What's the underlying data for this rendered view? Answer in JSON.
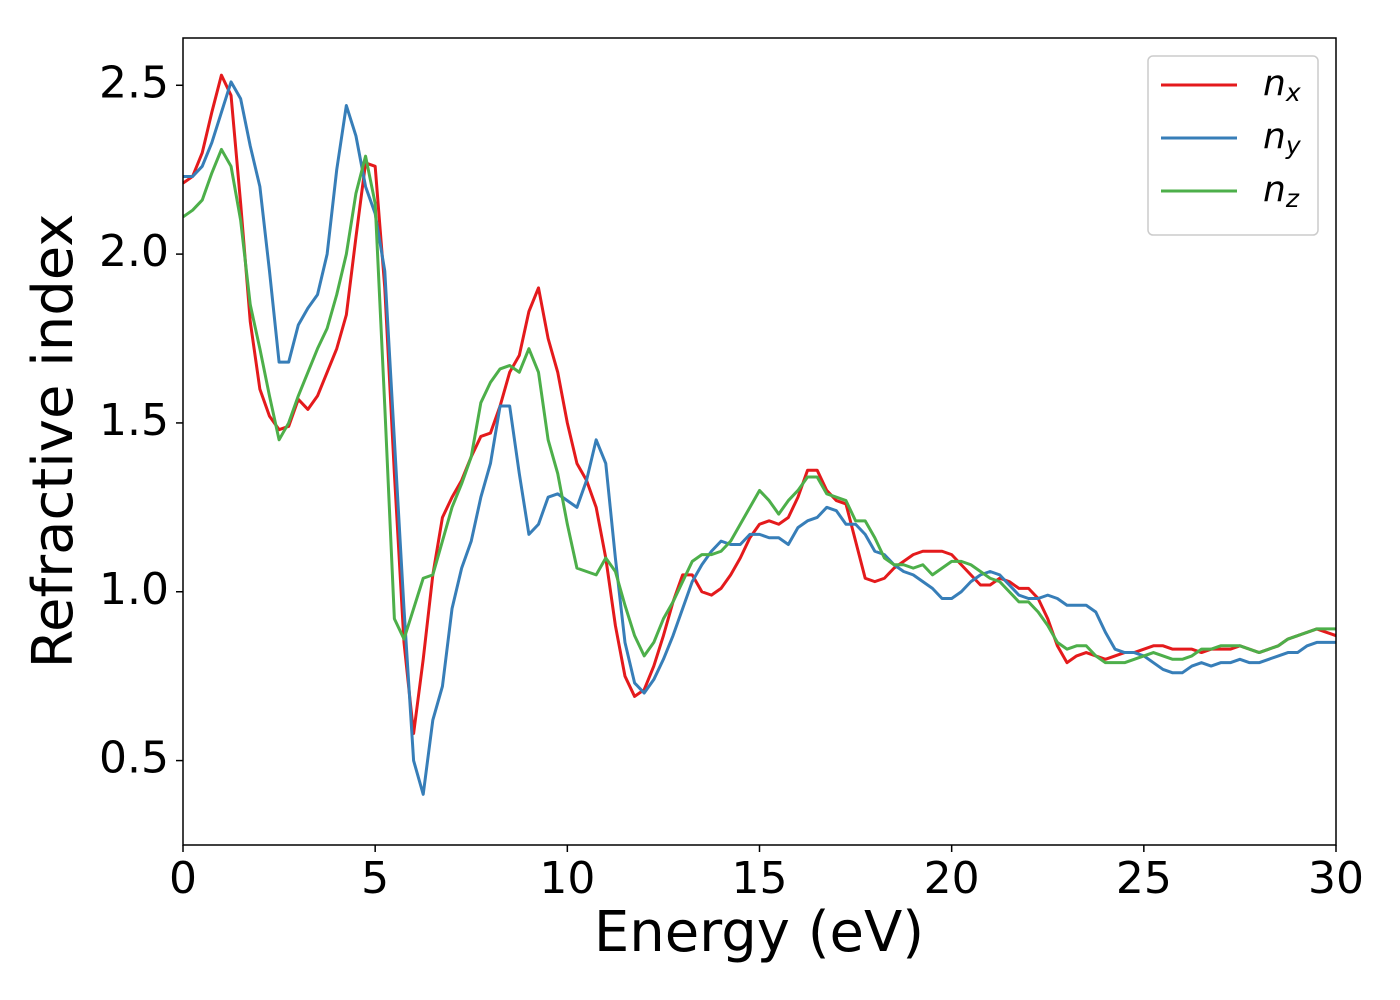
{
  "chart_data": {
    "type": "line",
    "xlabel": "Energy (eV)",
    "ylabel": "Refractive index",
    "xlim": [
      0,
      30
    ],
    "ylim": [
      0.25,
      2.64
    ],
    "xticks": [
      0,
      5,
      10,
      15,
      20,
      25,
      30
    ],
    "yticks": [
      0.5,
      {
        "value": 1,
        "label": "1.0"
      },
      1.5,
      {
        "value": 2,
        "label": "2.0"
      },
      2.5
    ],
    "grid": false,
    "legend": "upper right",
    "x": [
      0,
      0.25,
      0.5,
      0.75,
      1,
      1.25,
      1.5,
      1.75,
      2,
      2.25,
      2.5,
      2.75,
      3,
      3.25,
      3.5,
      3.75,
      4,
      4.25,
      4.5,
      4.75,
      5,
      5.25,
      5.5,
      5.75,
      6,
      6.25,
      6.5,
      6.75,
      7,
      7.25,
      7.5,
      7.75,
      8,
      8.25,
      8.5,
      8.75,
      9,
      9.25,
      9.5,
      9.75,
      10,
      10.25,
      10.5,
      10.75,
      11,
      11.25,
      11.5,
      11.75,
      12,
      12.25,
      12.5,
      12.75,
      13,
      13.25,
      13.5,
      13.75,
      14,
      14.25,
      14.5,
      14.75,
      15,
      15.25,
      15.5,
      15.75,
      16,
      16.25,
      16.5,
      16.75,
      17,
      17.25,
      17.5,
      17.75,
      18,
      18.25,
      18.5,
      18.75,
      19,
      19.25,
      19.5,
      19.75,
      20,
      20.25,
      20.5,
      20.75,
      21,
      21.25,
      21.5,
      21.75,
      22,
      22.25,
      22.5,
      22.75,
      23,
      23.25,
      23.5,
      23.75,
      24,
      24.25,
      24.5,
      24.75,
      25,
      25.25,
      25.5,
      25.75,
      26,
      26.25,
      26.5,
      26.75,
      27,
      27.25,
      27.5,
      27.75,
      28,
      28.25,
      28.5,
      28.75,
      29,
      29.25,
      29.5,
      29.75,
      30
    ],
    "series": [
      {
        "name": "nx",
        "color": "#e41a1c",
        "values": [
          2.21,
          2.23,
          2.3,
          2.42,
          2.53,
          2.47,
          2.15,
          1.8,
          1.6,
          1.52,
          1.48,
          1.49,
          1.57,
          1.54,
          1.58,
          1.65,
          1.72,
          1.82,
          2.05,
          2.27,
          2.26,
          1.9,
          1.35,
          0.85,
          0.58,
          0.8,
          1.05,
          1.22,
          1.28,
          1.33,
          1.4,
          1.46,
          1.47,
          1.55,
          1.65,
          1.7,
          1.83,
          1.9,
          1.75,
          1.65,
          1.5,
          1.38,
          1.33,
          1.25,
          1.1,
          0.9,
          0.75,
          0.69,
          0.71,
          0.78,
          0.87,
          0.97,
          1.05,
          1.05,
          1.0,
          0.99,
          1.01,
          1.05,
          1.1,
          1.16,
          1.2,
          1.21,
          1.2,
          1.22,
          1.28,
          1.36,
          1.36,
          1.3,
          1.27,
          1.26,
          1.15,
          1.04,
          1.03,
          1.04,
          1.07,
          1.09,
          1.11,
          1.12,
          1.12,
          1.12,
          1.11,
          1.08,
          1.05,
          1.02,
          1.02,
          1.04,
          1.03,
          1.01,
          1.01,
          0.98,
          0.92,
          0.84,
          0.79,
          0.81,
          0.82,
          0.81,
          0.8,
          0.81,
          0.82,
          0.82,
          0.83,
          0.84,
          0.84,
          0.83,
          0.83,
          0.83,
          0.82,
          0.83,
          0.83,
          0.83,
          0.84,
          0.83,
          0.82,
          0.83,
          0.84,
          0.86,
          0.87,
          0.88,
          0.89,
          0.88,
          0.87
        ]
      },
      {
        "name": "ny",
        "color": "#377eb8",
        "values": [
          2.23,
          2.23,
          2.26,
          2.33,
          2.42,
          2.51,
          2.46,
          2.32,
          2.2,
          1.95,
          1.68,
          1.68,
          1.79,
          1.84,
          1.88,
          2.0,
          2.25,
          2.44,
          2.35,
          2.2,
          2.12,
          1.95,
          1.45,
          0.95,
          0.5,
          0.4,
          0.62,
          0.72,
          0.95,
          1.07,
          1.15,
          1.28,
          1.38,
          1.55,
          1.55,
          1.35,
          1.17,
          1.2,
          1.28,
          1.29,
          1.27,
          1.25,
          1.33,
          1.45,
          1.38,
          1.1,
          0.85,
          0.73,
          0.7,
          0.74,
          0.8,
          0.87,
          0.95,
          1.03,
          1.08,
          1.12,
          1.15,
          1.14,
          1.14,
          1.17,
          1.17,
          1.16,
          1.16,
          1.14,
          1.19,
          1.21,
          1.22,
          1.25,
          1.24,
          1.2,
          1.2,
          1.17,
          1.12,
          1.11,
          1.08,
          1.06,
          1.05,
          1.03,
          1.01,
          0.98,
          0.98,
          1.0,
          1.03,
          1.05,
          1.06,
          1.05,
          1.02,
          0.99,
          0.98,
          0.98,
          0.99,
          0.98,
          0.96,
          0.96,
          0.96,
          0.94,
          0.88,
          0.83,
          0.82,
          0.82,
          0.81,
          0.79,
          0.77,
          0.76,
          0.76,
          0.78,
          0.79,
          0.78,
          0.79,
          0.79,
          0.8,
          0.79,
          0.79,
          0.8,
          0.81,
          0.82,
          0.82,
          0.84,
          0.85,
          0.85,
          0.85
        ]
      },
      {
        "name": "nz",
        "color": "#4daf4a",
        "values": [
          2.11,
          2.13,
          2.16,
          2.24,
          2.31,
          2.26,
          2.1,
          1.85,
          1.72,
          1.58,
          1.45,
          1.5,
          1.58,
          1.65,
          1.72,
          1.78,
          1.88,
          2.0,
          2.18,
          2.29,
          2.15,
          1.55,
          0.92,
          0.86,
          0.95,
          1.04,
          1.05,
          1.15,
          1.25,
          1.32,
          1.4,
          1.56,
          1.62,
          1.66,
          1.67,
          1.65,
          1.72,
          1.65,
          1.45,
          1.35,
          1.2,
          1.07,
          1.06,
          1.05,
          1.1,
          1.06,
          0.96,
          0.87,
          0.81,
          0.85,
          0.92,
          0.97,
          1.03,
          1.09,
          1.11,
          1.11,
          1.12,
          1.15,
          1.2,
          1.25,
          1.3,
          1.27,
          1.23,
          1.27,
          1.3,
          1.34,
          1.34,
          1.29,
          1.28,
          1.27,
          1.21,
          1.21,
          1.16,
          1.1,
          1.08,
          1.08,
          1.07,
          1.08,
          1.05,
          1.07,
          1.09,
          1.09,
          1.08,
          1.06,
          1.04,
          1.03,
          1.0,
          0.97,
          0.97,
          0.94,
          0.9,
          0.85,
          0.83,
          0.84,
          0.84,
          0.81,
          0.79,
          0.79,
          0.79,
          0.8,
          0.81,
          0.82,
          0.81,
          0.8,
          0.8,
          0.81,
          0.83,
          0.83,
          0.84,
          0.84,
          0.84,
          0.83,
          0.82,
          0.83,
          0.84,
          0.86,
          0.87,
          0.88,
          0.89,
          0.89,
          0.89
        ]
      }
    ]
  }
}
